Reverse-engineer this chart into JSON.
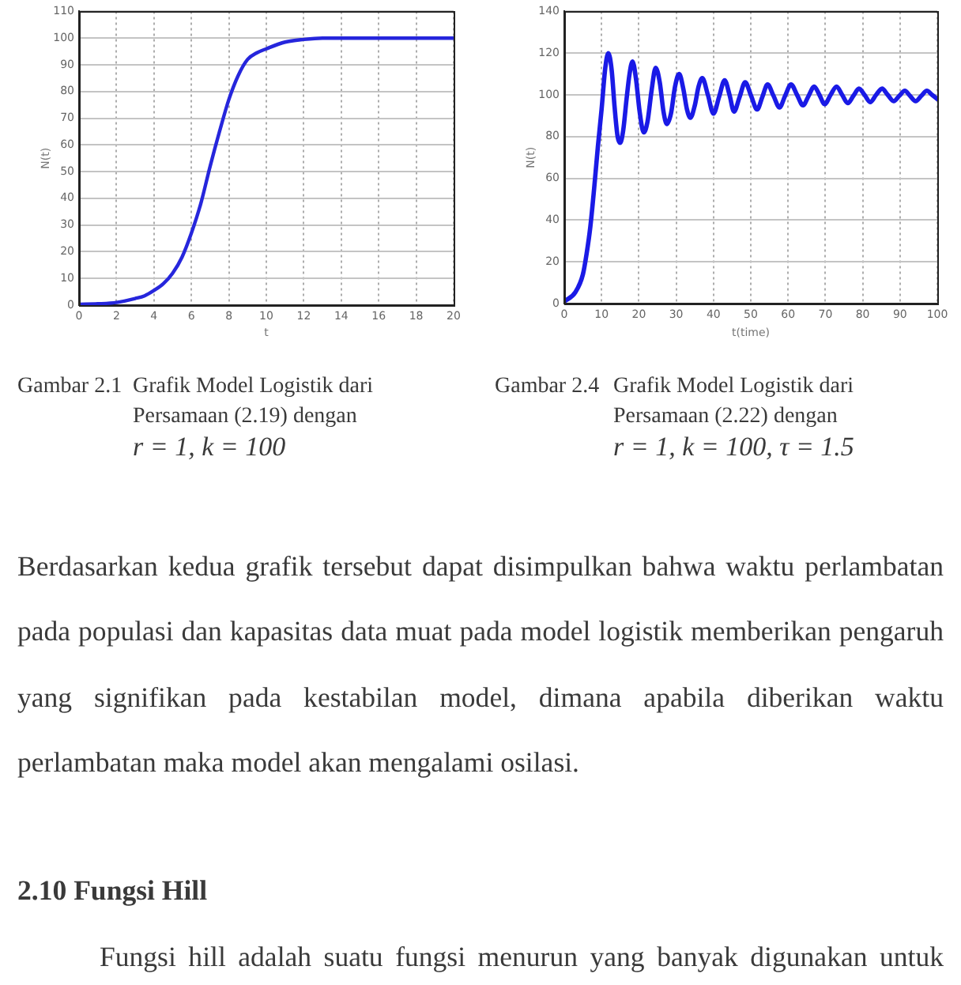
{
  "chart_data": [
    {
      "type": "line",
      "xlabel": "t",
      "ylabel": "N(t)",
      "color": "#2626dc",
      "marker": "none",
      "grid": true,
      "x": [
        0,
        1,
        2,
        3,
        3.5,
        4,
        4.5,
        5,
        5.5,
        6,
        6.5,
        7,
        7.5,
        8,
        8.5,
        9,
        9.5,
        10,
        11,
        12,
        13,
        14,
        16,
        18,
        20
      ],
      "values": [
        0.3,
        0.5,
        1,
        2.5,
        3.5,
        5.5,
        8,
        12,
        18,
        27,
        38,
        52,
        65,
        77,
        86,
        92,
        94.5,
        96,
        98.5,
        99.5,
        100,
        100,
        100,
        100,
        100
      ],
      "xlim": [
        0,
        20
      ],
      "ylim": [
        0,
        110
      ],
      "xticks": [
        0,
        2,
        4,
        6,
        8,
        10,
        12,
        14,
        16,
        18,
        20
      ],
      "yticks": [
        0,
        10,
        20,
        30,
        40,
        50,
        60,
        70,
        80,
        90,
        100,
        110
      ],
      "annotations": [
        "Gambar 2.1",
        "Grafik Model Logistik dari Persamaan (2.19) dengan",
        "r = 1, k = 100"
      ]
    },
    {
      "type": "line",
      "xlabel": "t(time)",
      "ylabel": "N(t)",
      "color": "#1a1ae6",
      "marker": "none",
      "grid": true,
      "x": [
        0,
        3,
        5,
        6,
        7,
        8,
        9,
        10,
        11,
        11.8,
        12.7,
        13.5,
        14.3,
        15,
        15.8,
        16.7,
        17.5,
        18.3,
        19.2,
        20.2,
        21.3,
        22.3,
        23.4,
        24.5,
        25.6,
        26.6,
        27.5,
        28.6,
        29.7,
        30.8,
        31.9,
        32.9,
        33.8,
        35,
        36,
        37,
        38.5,
        40,
        41.5,
        43,
        44.3,
        45.5,
        47,
        48.5,
        50.1,
        51.7,
        53.1,
        54.5,
        56.1,
        57.7,
        59.2,
        60.8,
        62.4,
        64,
        65.5,
        67,
        68.4,
        69.8,
        71.4,
        73,
        74.5,
        76,
        77.5,
        79,
        80.5,
        82,
        83.6,
        85.2,
        86.7,
        88.3,
        89.8,
        91.3,
        92.7,
        94.2,
        95.7,
        97.2,
        98.6,
        100
      ],
      "values": [
        1,
        5.5,
        14,
        24,
        37,
        55,
        75,
        93,
        113,
        120,
        112,
        94,
        80,
        77,
        83,
        98,
        110,
        116,
        108,
        92,
        82,
        87,
        102,
        113,
        106,
        92,
        86,
        91,
        104,
        110,
        103,
        93,
        89,
        95,
        104,
        108,
        100,
        91,
        99,
        107,
        100,
        92,
        99,
        106,
        99.5,
        93,
        99,
        105,
        99.5,
        94,
        99.5,
        105,
        100,
        95,
        99.5,
        104,
        100,
        95.5,
        100,
        104,
        100,
        96,
        99.5,
        103,
        100,
        96.5,
        100,
        103,
        100,
        97,
        99.5,
        102,
        99.5,
        97,
        99.5,
        102,
        100,
        98
      ],
      "xlim": [
        0,
        100
      ],
      "ylim": [
        0,
        140
      ],
      "xticks": [
        0,
        10,
        20,
        30,
        40,
        50,
        60,
        70,
        80,
        90,
        100
      ],
      "yticks": [
        0,
        20,
        40,
        60,
        80,
        100,
        120,
        140
      ],
      "annotations": [
        "Gambar 2.4",
        "Grafik Model Logistik dari Persamaan (2.22) dengan",
        "r = 1, k = 100, τ = 1.5"
      ]
    },
    {
      "type": "other",
      "annotations": [
        "Berdasarkan kedua grafik tersebut dapat disimpulkan bahwa waktu perlambatan pada populasi dan kapasitas data muat pada model logistik memberikan pengaruh yang signifikan pada kestabilan model, dimana apabila diberikan waktu perlambatan maka model akan mengalami osilasi.",
        "2.10 Fungsi Hill",
        "Fungsi hill adalah suatu fungsi menurun yang banyak digunakan untuk"
      ]
    }
  ]
}
